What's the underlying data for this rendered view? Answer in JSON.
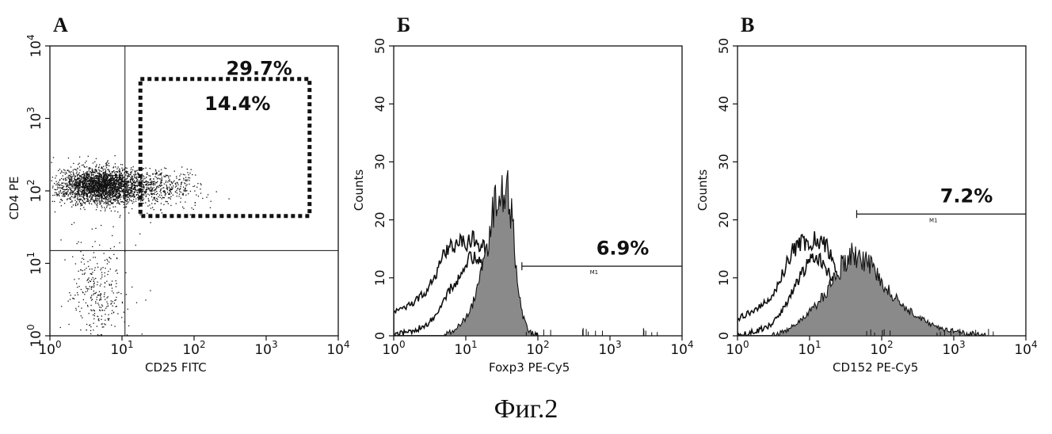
{
  "caption": "Фиг.2",
  "colors": {
    "ink": "#111111",
    "fill_gray": "#8a8a8a",
    "background": "#ffffff"
  },
  "chart_data": [
    {
      "type": "scatter",
      "panel_label": "A",
      "title": "",
      "xlabel": "CD25 FITC",
      "ylabel": "CD4 PE",
      "x_scale": "log",
      "y_scale": "log",
      "xlim": [
        1,
        10000
      ],
      "ylim": [
        1,
        10000
      ],
      "x_ticks": [
        {
          "value": 1,
          "base": "10",
          "exp": "0"
        },
        {
          "value": 10,
          "base": "10",
          "exp": "1"
        },
        {
          "value": 100,
          "base": "10",
          "exp": "2"
        },
        {
          "value": 1000,
          "base": "10",
          "exp": "3"
        },
        {
          "value": 10000,
          "base": "10",
          "exp": "4"
        }
      ],
      "y_ticks": [
        {
          "value": 1,
          "base": "10",
          "exp": "0"
        },
        {
          "value": 10,
          "base": "10",
          "exp": "1"
        },
        {
          "value": 100,
          "base": "10",
          "exp": "2"
        },
        {
          "value": 1000,
          "base": "10",
          "exp": "3"
        },
        {
          "value": 10000,
          "base": "10",
          "exp": "4"
        }
      ],
      "quadrant_lines": {
        "x": 11,
        "y": 15
      },
      "gate": {
        "x_range": [
          18,
          4000
        ],
        "y_range": [
          45,
          3500
        ],
        "style": "dotted"
      },
      "annotations": [
        {
          "text": "29.7%",
          "x": 800,
          "y": 4000
        },
        {
          "text": "14.4%",
          "x": 400,
          "y": 1300
        }
      ],
      "populations": [
        {
          "name": "",
          "cx": 5,
          "cy": 120,
          "sx": 0.28,
          "sy": 0.12,
          "n": 2600
        },
        {
          "name": "",
          "cx": 30,
          "cy": 110,
          "sx": 0.32,
          "sy": 0.14,
          "n": 500
        },
        {
          "name": "",
          "cx": 4.5,
          "cy": 4,
          "sx": 0.2,
          "sy": 0.4,
          "n": 320
        }
      ]
    },
    {
      "type": "area",
      "panel_label": "Б",
      "title": "",
      "xlabel": "Foxp3 PE-Cy5",
      "ylabel": "Counts",
      "x_scale": "log",
      "xlim": [
        1,
        10000
      ],
      "ylim": [
        0,
        50
      ],
      "x_ticks": [
        {
          "value": 1,
          "base": "10",
          "exp": "0"
        },
        {
          "value": 10,
          "base": "10",
          "exp": "1"
        },
        {
          "value": 100,
          "base": "10",
          "exp": "2"
        },
        {
          "value": 1000,
          "base": "10",
          "exp": "3"
        },
        {
          "value": 10000,
          "base": "10",
          "exp": "4"
        }
      ],
      "y_ticks": [
        0,
        10,
        20,
        30,
        40,
        50
      ],
      "marker": {
        "label": "M1",
        "x_range": [
          60,
          10000
        ],
        "y": 12
      },
      "annotations": [
        {
          "text": "6.9%",
          "x": 1500,
          "y": 14
        }
      ],
      "series": [
        {
          "name": "",
          "style": "outline",
          "x": [
            1,
            1.5,
            2,
            3,
            4,
            5,
            6,
            8,
            10,
            12,
            15,
            18,
            22,
            27,
            33,
            40,
            50,
            60,
            80,
            100
          ],
          "values": [
            4,
            5,
            6,
            8,
            11,
            14,
            15,
            16,
            16,
            17,
            16,
            15,
            12,
            9,
            6,
            4,
            2,
            1,
            0.5,
            0
          ]
        },
        {
          "name": "",
          "style": "outline",
          "x": [
            1,
            2,
            3,
            4,
            5,
            6,
            8,
            10,
            12,
            15,
            18,
            22,
            27,
            33,
            40,
            50,
            60,
            80
          ],
          "values": [
            0,
            1,
            2,
            4,
            6,
            8,
            10,
            12,
            14,
            13,
            11,
            9,
            7,
            5,
            3,
            1.5,
            0.5,
            0
          ]
        },
        {
          "name": "",
          "style": "filled",
          "x": [
            5,
            7,
            10,
            13,
            16,
            20,
            23,
            26,
            30,
            34,
            38,
            42,
            46,
            50,
            55,
            60,
            70,
            80,
            100
          ],
          "values": [
            0,
            1,
            3,
            6,
            10,
            16,
            20,
            23,
            25,
            26,
            25,
            22,
            17,
            12,
            7,
            4,
            1.5,
            0.5,
            0
          ]
        }
      ]
    },
    {
      "type": "area",
      "panel_label": "В",
      "title": "",
      "xlabel": "CD152 PE-Cy5",
      "ylabel": "Counts",
      "x_scale": "log",
      "xlim": [
        1,
        10000
      ],
      "ylim": [
        0,
        50
      ],
      "x_ticks": [
        {
          "value": 1,
          "base": "10",
          "exp": "0"
        },
        {
          "value": 10,
          "base": "10",
          "exp": "1"
        },
        {
          "value": 100,
          "base": "10",
          "exp": "2"
        },
        {
          "value": 1000,
          "base": "10",
          "exp": "3"
        },
        {
          "value": 10000,
          "base": "10",
          "exp": "4"
        }
      ],
      "y_ticks": [
        0,
        10,
        20,
        30,
        40,
        50
      ],
      "marker": {
        "label": "M1",
        "x_range": [
          45,
          10000
        ],
        "y": 21
      },
      "annotations": [
        {
          "text": "7.2%",
          "x": 1500,
          "y": 23
        }
      ],
      "series": [
        {
          "name": "",
          "style": "outline",
          "x": [
            1,
            1.5,
            2,
            3,
            4,
            5,
            6,
            8,
            10,
            12,
            15,
            18,
            22,
            27,
            33,
            40,
            50,
            60,
            80,
            100
          ],
          "values": [
            3,
            4,
            5,
            7,
            10,
            13,
            15,
            16,
            16,
            17,
            16,
            15,
            12,
            9,
            6,
            4,
            2,
            1,
            0.5,
            0
          ]
        },
        {
          "name": "",
          "style": "outline",
          "x": [
            1,
            2,
            3,
            4,
            5,
            6,
            8,
            10,
            12,
            15,
            18,
            22,
            27,
            33,
            40,
            50,
            60,
            80
          ],
          "values": [
            0,
            1,
            2,
            4,
            6,
            8,
            11,
            13,
            14,
            13,
            11,
            9,
            7,
            5,
            3,
            1.5,
            0.5,
            0
          ]
        },
        {
          "name": "",
          "style": "filled",
          "x": [
            3,
            5,
            8,
            12,
            16,
            20,
            25,
            30,
            40,
            50,
            60,
            80,
            100,
            150,
            200,
            300,
            500,
            800,
            1500,
            3000
          ],
          "values": [
            0,
            1,
            3,
            5,
            7,
            9,
            11,
            13,
            14,
            14,
            13,
            11,
            9,
            7,
            5,
            3.5,
            2,
            1,
            0.4,
            0
          ]
        }
      ]
    }
  ]
}
